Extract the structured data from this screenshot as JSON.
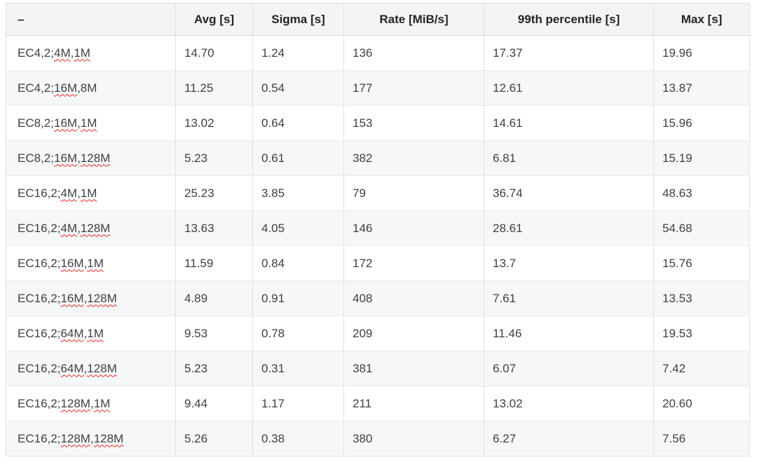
{
  "table": {
    "columns": [
      "–",
      "Avg [s]",
      "Sigma [s]",
      "Rate [MiB/s]",
      "99th percentile [s]",
      "Max [s]"
    ],
    "rows": [
      {
        "label_parts": [
          {
            "text": "EC4,2;",
            "misspelled": false
          },
          {
            "text": "4M",
            "misspelled": true
          },
          {
            "text": ",",
            "misspelled": false
          },
          {
            "text": "1M",
            "misspelled": true
          }
        ],
        "values": [
          "14.70",
          "1.24",
          "136",
          "17.37",
          "19.96"
        ]
      },
      {
        "label_parts": [
          {
            "text": "EC4,2;",
            "misspelled": false
          },
          {
            "text": "16M",
            "misspelled": true
          },
          {
            "text": ",8M",
            "misspelled": false
          }
        ],
        "values": [
          "11.25",
          "0.54",
          "177",
          "12.61",
          "13.87"
        ]
      },
      {
        "label_parts": [
          {
            "text": "EC8,2;",
            "misspelled": false
          },
          {
            "text": "16M",
            "misspelled": true
          },
          {
            "text": ",",
            "misspelled": false
          },
          {
            "text": "1M",
            "misspelled": true
          }
        ],
        "values": [
          "13.02",
          "0.64",
          "153",
          "14.61",
          "15.96"
        ]
      },
      {
        "label_parts": [
          {
            "text": "EC8,2;",
            "misspelled": false
          },
          {
            "text": "16M",
            "misspelled": true
          },
          {
            "text": ",",
            "misspelled": false
          },
          {
            "text": "128M",
            "misspelled": true
          }
        ],
        "values": [
          "5.23",
          "0.61",
          "382",
          "6.81",
          "15.19"
        ]
      },
      {
        "label_parts": [
          {
            "text": "EC16,2;",
            "misspelled": false
          },
          {
            "text": "4M",
            "misspelled": true
          },
          {
            "text": ",",
            "misspelled": false
          },
          {
            "text": "1M",
            "misspelled": true
          }
        ],
        "values": [
          "25.23",
          "3.85",
          "79",
          "36.74",
          "48.63"
        ]
      },
      {
        "label_parts": [
          {
            "text": "EC16,2;",
            "misspelled": false
          },
          {
            "text": "4M",
            "misspelled": true
          },
          {
            "text": ",",
            "misspelled": false
          },
          {
            "text": "128M",
            "misspelled": true
          }
        ],
        "values": [
          "13.63",
          "4.05",
          "146",
          "28.61",
          "54.68"
        ]
      },
      {
        "label_parts": [
          {
            "text": "EC16,2;",
            "misspelled": false
          },
          {
            "text": "16M",
            "misspelled": true
          },
          {
            "text": ",",
            "misspelled": false
          },
          {
            "text": "1M",
            "misspelled": true
          }
        ],
        "values": [
          "11.59",
          "0.84",
          "172",
          "13.7",
          "15.76"
        ]
      },
      {
        "label_parts": [
          {
            "text": "EC16,2;",
            "misspelled": false
          },
          {
            "text": "16M",
            "misspelled": true
          },
          {
            "text": ",",
            "misspelled": false
          },
          {
            "text": "128M",
            "misspelled": true
          }
        ],
        "values": [
          "4.89",
          "0.91",
          "408",
          "7.61",
          "13.53"
        ]
      },
      {
        "label_parts": [
          {
            "text": "EC16,2;",
            "misspelled": false
          },
          {
            "text": "64M",
            "misspelled": true
          },
          {
            "text": ",",
            "misspelled": false
          },
          {
            "text": "1M",
            "misspelled": true
          }
        ],
        "values": [
          "9.53",
          "0.78",
          "209",
          "11.46",
          "19.53"
        ]
      },
      {
        "label_parts": [
          {
            "text": "EC16,2;",
            "misspelled": false
          },
          {
            "text": "64M",
            "misspelled": true
          },
          {
            "text": ",",
            "misspelled": false
          },
          {
            "text": "128M",
            "misspelled": true
          }
        ],
        "values": [
          "5.23",
          "0.31",
          "381",
          "6.07",
          "7.42"
        ]
      },
      {
        "label_parts": [
          {
            "text": "EC16,2;",
            "misspelled": false
          },
          {
            "text": "128M",
            "misspelled": true
          },
          {
            "text": ",",
            "misspelled": false
          },
          {
            "text": "1M",
            "misspelled": true
          }
        ],
        "values": [
          "9.44",
          "1.17",
          "211",
          "13.02",
          "20.60"
        ]
      },
      {
        "label_parts": [
          {
            "text": "EC16,2;",
            "misspelled": false
          },
          {
            "text": "128M",
            "misspelled": true
          },
          {
            "text": ",",
            "misspelled": false
          },
          {
            "text": "128M",
            "misspelled": true
          }
        ],
        "values": [
          "5.26",
          "0.38",
          "380",
          "6.27",
          "7.56"
        ]
      }
    ]
  },
  "chart_data": {
    "type": "table",
    "columns": [
      "–",
      "Avg [s]",
      "Sigma [s]",
      "Rate [MiB/s]",
      "99th percentile [s]",
      "Max [s]"
    ],
    "rows": [
      [
        "EC4,2;4M,1M",
        14.7,
        1.24,
        136,
        17.37,
        19.96
      ],
      [
        "EC4,2;16M,8M",
        11.25,
        0.54,
        177,
        12.61,
        13.87
      ],
      [
        "EC8,2;16M,1M",
        13.02,
        0.64,
        153,
        14.61,
        15.96
      ],
      [
        "EC8,2;16M,128M",
        5.23,
        0.61,
        382,
        6.81,
        15.19
      ],
      [
        "EC16,2;4M,1M",
        25.23,
        3.85,
        79,
        36.74,
        48.63
      ],
      [
        "EC16,2;4M,128M",
        13.63,
        4.05,
        146,
        28.61,
        54.68
      ],
      [
        "EC16,2;16M,1M",
        11.59,
        0.84,
        172,
        13.7,
        15.76
      ],
      [
        "EC16,2;16M,128M",
        4.89,
        0.91,
        408,
        7.61,
        13.53
      ],
      [
        "EC16,2;64M,1M",
        9.53,
        0.78,
        209,
        11.46,
        19.53
      ],
      [
        "EC16,2;64M,128M",
        5.23,
        0.31,
        381,
        6.07,
        7.42
      ],
      [
        "EC16,2;128M,1M",
        9.44,
        1.17,
        211,
        13.02,
        20.6
      ],
      [
        "EC16,2;128M,128M",
        5.26,
        0.38,
        380,
        6.27,
        7.56
      ]
    ]
  },
  "colors": {
    "header_bg": "#f3f4f5",
    "stripe_bg": "#f6f7f8",
    "border": "#e0e1e3",
    "header_border": "#d7d9da",
    "text": "#3e4042",
    "header_text": "#222426",
    "spellcheck_squiggle": "#e3271c"
  }
}
